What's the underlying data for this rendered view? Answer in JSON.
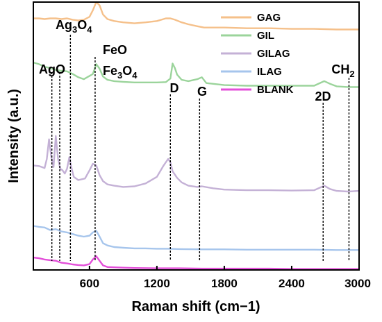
{
  "chart_data": {
    "type": "line",
    "title": "",
    "xlabel": "Raman shift (cm−1)",
    "ylabel": "Intensity   (a.u.)",
    "xlim": [
      100,
      3000
    ],
    "xticks": [
      600,
      1200,
      1800,
      2400,
      3000
    ],
    "ylim": [
      0,
      8.2
    ],
    "grid": false,
    "legend_position": "top-right",
    "series": [
      {
        "name": "GAG",
        "color": "#F5C08A",
        "baseline": 7.4,
        "x": [
          100,
          150,
          200,
          250,
          300,
          350,
          400,
          450,
          500,
          550,
          600,
          630,
          660,
          690,
          720,
          760,
          820,
          900,
          1000,
          1100,
          1200,
          1280,
          1320,
          1360,
          1420,
          1480,
          1560,
          1620,
          1800,
          2000,
          2200,
          2400,
          2600,
          2800,
          3000
        ],
        "y": [
          0.3,
          0.3,
          0.28,
          0.3,
          0.3,
          0.28,
          0.3,
          0.26,
          0.24,
          0.26,
          0.35,
          0.55,
          0.8,
          0.7,
          0.42,
          0.28,
          0.22,
          0.18,
          0.15,
          0.18,
          0.22,
          0.3,
          0.3,
          0.26,
          0.18,
          0.12,
          0.06,
          0.02,
          0.02,
          0.0,
          0.0,
          -0.02,
          -0.02,
          -0.04,
          -0.04
        ]
      },
      {
        "name": "GIL",
        "color": "#9BD49B",
        "baseline": 5.6,
        "x": [
          100,
          150,
          200,
          250,
          300,
          350,
          400,
          450,
          500,
          550,
          600,
          630,
          660,
          690,
          720,
          760,
          820,
          900,
          1000,
          1100,
          1200,
          1280,
          1320,
          1340,
          1360,
          1380,
          1420,
          1480,
          1560,
          1600,
          1640,
          1800,
          2000,
          2200,
          2400,
          2600,
          2690,
          2740,
          2800,
          2900,
          3000
        ],
        "y": [
          0.75,
          0.7,
          0.62,
          0.58,
          0.52,
          0.5,
          0.48,
          0.4,
          0.3,
          0.24,
          0.34,
          0.4,
          0.7,
          0.56,
          0.32,
          0.22,
          0.18,
          0.16,
          0.14,
          0.14,
          0.14,
          0.15,
          0.26,
          0.72,
          0.58,
          0.38,
          0.22,
          0.18,
          0.24,
          0.3,
          0.12,
          0.06,
          0.04,
          0.04,
          0.04,
          0.04,
          0.18,
          0.1,
          0.02,
          0.0,
          0.0
        ]
      },
      {
        "name": "GILAG",
        "color": "#C4B1D6",
        "baseline": 2.4,
        "x": [
          100,
          150,
          200,
          220,
          240,
          260,
          280,
          300,
          320,
          340,
          360,
          380,
          400,
          420,
          440,
          460,
          480,
          500,
          560,
          600,
          630,
          660,
          690,
          720,
          760,
          820,
          900,
          1000,
          1100,
          1200,
          1260,
          1300,
          1320,
          1340,
          1380,
          1420,
          1480,
          1560,
          1600,
          1700,
          1800,
          2000,
          2200,
          2400,
          2600,
          2690,
          2740,
          2800,
          2900,
          3000
        ],
        "y": [
          0.8,
          0.78,
          0.72,
          1.0,
          1.6,
          1.05,
          0.75,
          1.7,
          1.0,
          0.7,
          0.65,
          0.55,
          0.7,
          1.05,
          0.72,
          0.45,
          0.4,
          0.35,
          0.4,
          0.65,
          0.85,
          0.8,
          0.5,
          0.32,
          0.22,
          0.18,
          0.14,
          0.16,
          0.25,
          0.45,
          0.8,
          1.0,
          0.9,
          0.62,
          0.42,
          0.28,
          0.18,
          0.14,
          0.16,
          0.1,
          0.06,
          0.04,
          0.04,
          0.03,
          0.04,
          0.18,
          0.08,
          0.02,
          0.0,
          0.02
        ]
      },
      {
        "name": "ILAG",
        "color": "#A6C5EC",
        "baseline": 0.6,
        "x": [
          100,
          150,
          200,
          250,
          300,
          350,
          400,
          450,
          500,
          550,
          600,
          630,
          660,
          690,
          720,
          760,
          820,
          900,
          1000,
          1100,
          1200,
          1300,
          1400,
          1600,
          1800,
          2000,
          2200,
          2400,
          2600,
          2800,
          3000
        ],
        "y": [
          0.75,
          0.72,
          0.7,
          0.62,
          0.65,
          0.58,
          0.55,
          0.5,
          0.45,
          0.42,
          0.45,
          0.55,
          0.6,
          0.42,
          0.22,
          0.15,
          0.1,
          0.08,
          0.06,
          0.06,
          0.05,
          0.05,
          0.04,
          0.03,
          0.03,
          0.02,
          0.02,
          0.02,
          0.02,
          0.01,
          0.01
        ]
      },
      {
        "name": "BLANK",
        "color": "#E34FD9",
        "baseline": 0.0,
        "x": [
          100,
          150,
          200,
          250,
          300,
          350,
          400,
          450,
          500,
          550,
          600,
          630,
          660,
          690,
          720,
          760,
          820,
          900,
          1000,
          1200,
          1400,
          1600,
          1800,
          2000,
          2200,
          2400,
          2600,
          2800,
          3000
        ],
        "y": [
          0.38,
          0.36,
          0.32,
          0.3,
          0.28,
          0.22,
          0.2,
          0.17,
          0.15,
          0.14,
          0.18,
          0.32,
          0.42,
          0.28,
          0.14,
          0.09,
          0.08,
          0.07,
          0.06,
          0.05,
          0.05,
          0.04,
          0.04,
          0.04,
          0.04,
          0.03,
          0.03,
          0.03,
          0.03
        ]
      }
    ],
    "annotations": [
      {
        "id": "ago",
        "x": 265,
        "label": "AgO"
      },
      {
        "id": "ago2",
        "x": 335,
        "label": ""
      },
      {
        "id": "ag3o4",
        "x": 430,
        "label_parts": [
          "Ag",
          "3",
          "O",
          "4"
        ]
      },
      {
        "id": "feo",
        "x": 650,
        "label": "FeO",
        "label2_parts": [
          "Fe",
          "3",
          "O",
          "4"
        ]
      },
      {
        "id": "d",
        "x": 1320,
        "label": "D"
      },
      {
        "id": "g",
        "x": 1580,
        "label": "G"
      },
      {
        "id": "2d",
        "x": 2680,
        "label": "2D"
      },
      {
        "id": "ch2",
        "x": 2910,
        "label_parts": [
          "CH",
          "2"
        ]
      }
    ]
  }
}
